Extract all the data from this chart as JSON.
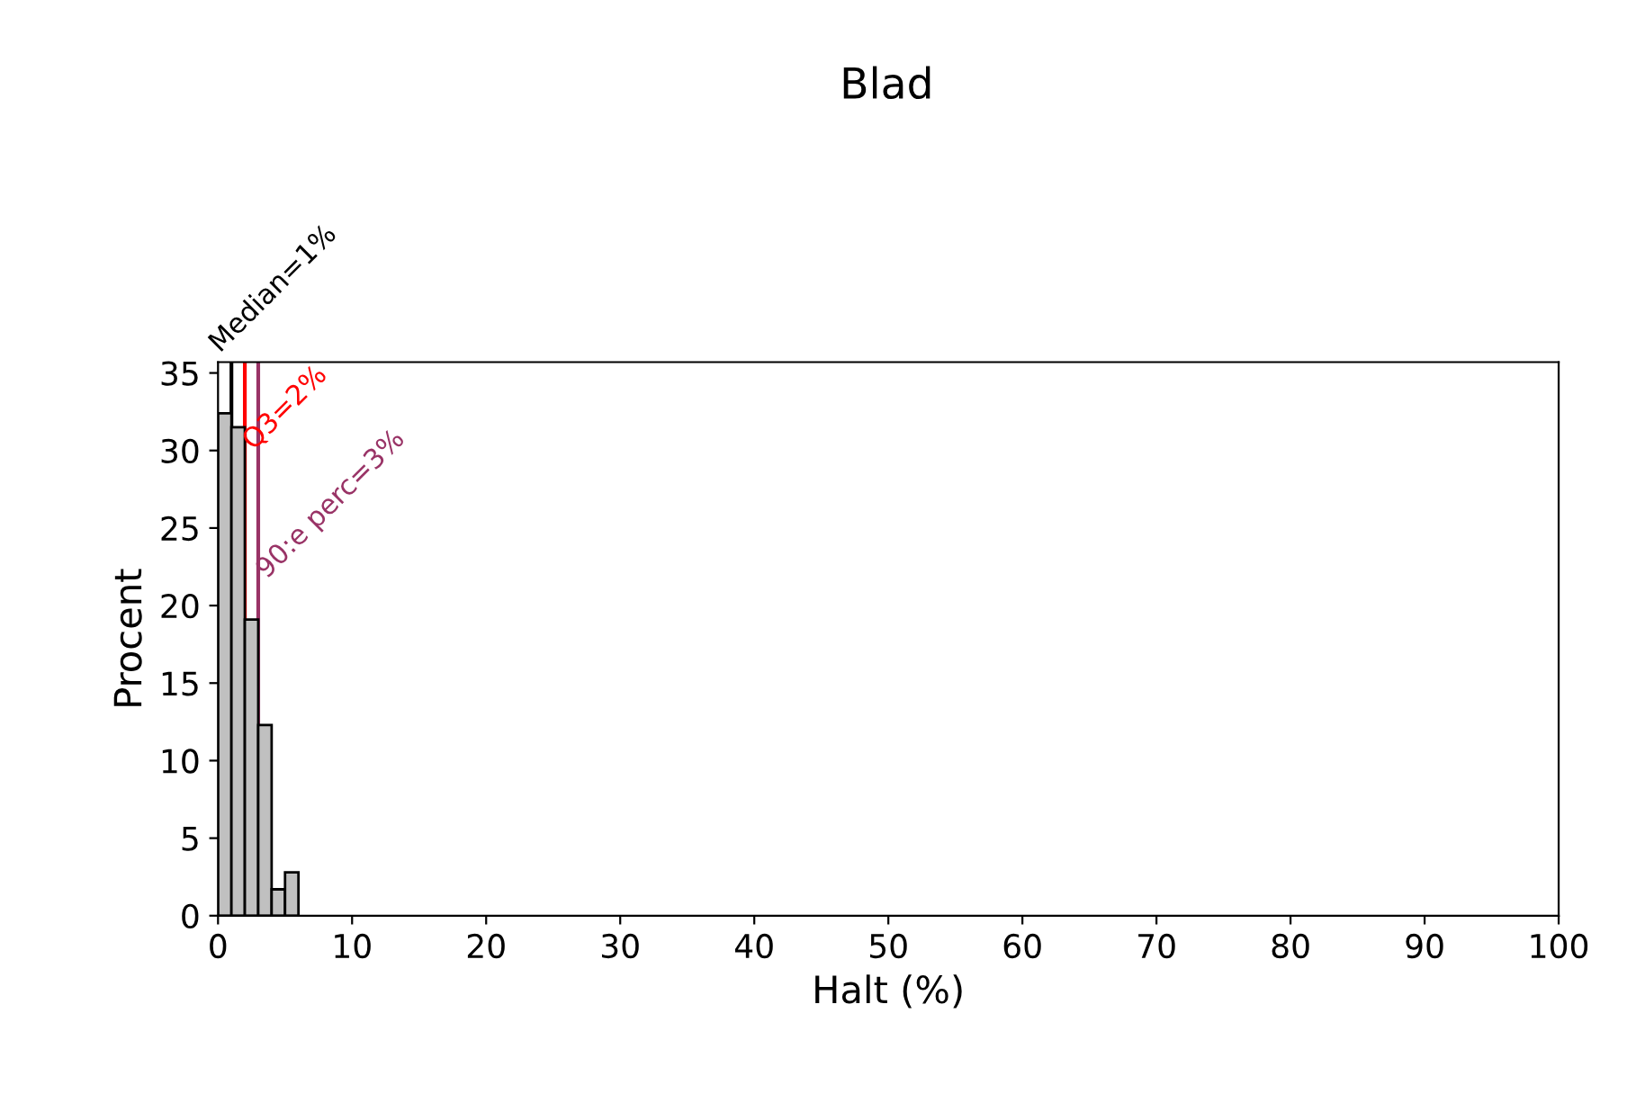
{
  "chart_data": {
    "type": "histogram",
    "title": "Blad",
    "xlabel": "Halt (%)",
    "ylabel": "Procent",
    "bins": [
      0,
      1,
      2,
      3,
      4,
      5,
      6
    ],
    "values": [
      32.4,
      31.5,
      19.1,
      12.3,
      1.7,
      2.8
    ],
    "color": "#c0c0c0",
    "xlim": [
      0,
      100
    ],
    "xticks": [
      0,
      10,
      20,
      30,
      40,
      50,
      60,
      70,
      80,
      90,
      100
    ],
    "ylim": [
      0,
      35.7
    ],
    "yticks": [
      0,
      5,
      10,
      15,
      20,
      25,
      30,
      35
    ],
    "ref_lines": [
      {
        "axis": "x",
        "value": 1,
        "label": "Median=1%",
        "color": "#000000"
      },
      {
        "axis": "x",
        "value": 2,
        "label": "Q3=2%",
        "color": "#ff0000"
      },
      {
        "axis": "x",
        "value": 3,
        "label": "90:e perc=3%",
        "color": "#993366"
      }
    ],
    "grid": false
  }
}
